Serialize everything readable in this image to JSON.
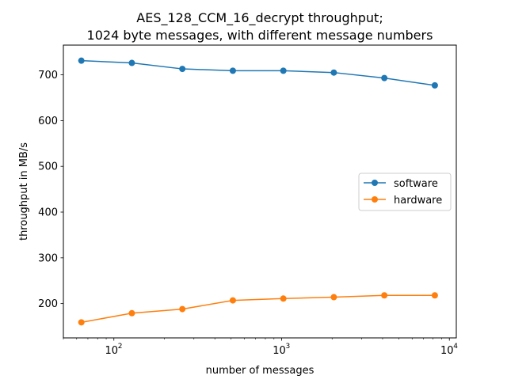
{
  "chart_data": {
    "type": "line",
    "title_line1": "AES_128_CCM_16_decrypt throughput;",
    "title_line2": "1024 byte messages, with different message numbers",
    "xlabel": "number of messages",
    "ylabel": "throughput in MB/s",
    "xscale": "log",
    "xlim": [
      50,
      11000
    ],
    "ylim": [
      125,
      765
    ],
    "x": [
      64,
      128,
      256,
      512,
      1024,
      2048,
      4096,
      8192
    ],
    "x_ticks": [
      {
        "value": 100,
        "base": "10",
        "exp": "2"
      },
      {
        "value": 1000,
        "base": "10",
        "exp": "3"
      },
      {
        "value": 10000,
        "base": "10",
        "exp": "4"
      }
    ],
    "y_ticks": [
      200,
      300,
      400,
      500,
      600,
      700
    ],
    "grid": false,
    "legend_position": "center-right",
    "series": [
      {
        "name": "software",
        "color": "#1f77b4",
        "values": [
          731,
          726,
          713,
          709,
          709,
          705,
          693,
          677
        ]
      },
      {
        "name": "hardware",
        "color": "#ff7f0e",
        "values": [
          159,
          179,
          188,
          207,
          211,
          214,
          218,
          218
        ]
      }
    ]
  }
}
